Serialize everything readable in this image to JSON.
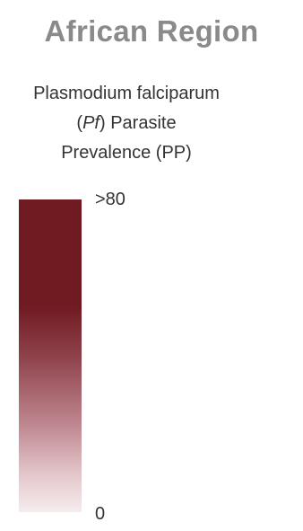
{
  "region_title": "African Region",
  "legend": {
    "title_line1": "Plasmodium falciparum",
    "title_abbr": "Pf",
    "title_line2_rest": " Parasite",
    "title_line3": "Prevalence (PP)",
    "scale_type": "continuous gradient",
    "max_label": ">80",
    "min_label": "0",
    "colors": {
      "high": "#701a22",
      "low": "#f6ecee"
    }
  }
}
